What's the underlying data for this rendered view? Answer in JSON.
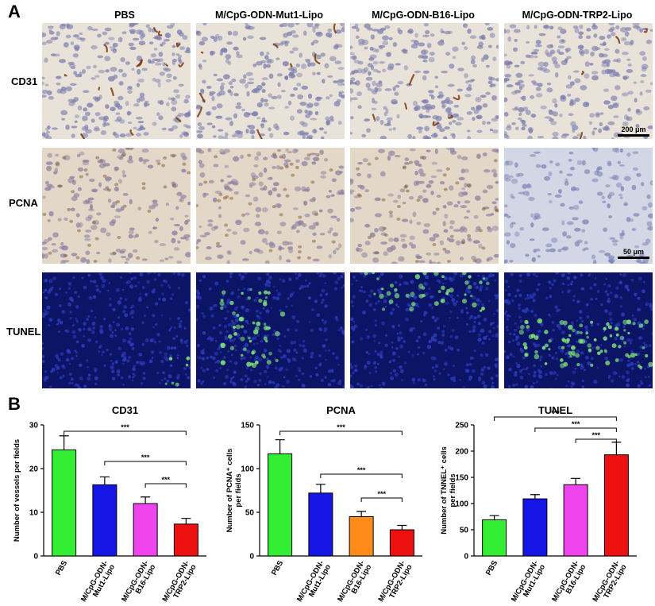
{
  "panel_a": {
    "letter": "A",
    "columns": [
      "PBS",
      "M/CpG-ODN-Mut1-Lipo",
      "M/CpG-ODN-B16-Lipo",
      "M/CpG-ODN-TRP2-Lipo"
    ],
    "rows": [
      "CD31",
      "PCNA",
      "TUNEL"
    ],
    "scalebars": [
      "200 μm",
      "50 μm"
    ]
  },
  "panel_b": {
    "letter": "B"
  },
  "colors": {
    "green": "#33ee33",
    "blue": "#1515e6",
    "magenta": "#ee44ee",
    "orange": "#ff8c1a",
    "red": "#ee1111",
    "ihc_bg": "#e9e1d6",
    "dapi": "#0c1466"
  },
  "chart_data": [
    {
      "type": "bar",
      "title": "CD31",
      "ylabel": "Number of vessels per fields",
      "ylim": [
        0,
        30
      ],
      "yticks": [
        0,
        10,
        20,
        30
      ],
      "categories": [
        "PBS",
        "M/CpG-ODN-Mut1-Lipo",
        "M/CpG-ODN-B16-Lipo",
        "M/CpG-ODN-TRP2-Lipo"
      ],
      "values": [
        24.3,
        16.3,
        12.0,
        7.3
      ],
      "errors": [
        3.2,
        1.8,
        1.5,
        1.3
      ],
      "bar_colors": [
        "#33ee33",
        "#1515e6",
        "#ee44ee",
        "#ee1111"
      ],
      "significance": [
        {
          "from": 0,
          "to": 3,
          "label": "***"
        },
        {
          "from": 1,
          "to": 3,
          "label": "***"
        },
        {
          "from": 2,
          "to": 3,
          "label": "***"
        }
      ]
    },
    {
      "type": "bar",
      "title": "PCNA",
      "ylabel": "Number of PCNA⁺ cells per fields",
      "ylim": [
        0,
        150
      ],
      "yticks": [
        0,
        50,
        100,
        150
      ],
      "categories": [
        "PBS",
        "M/CpG-ODN-Mut1-Lipo",
        "M/CpG-ODN-B16-Lipo",
        "M/CpG-ODN-TRP2-Lipo"
      ],
      "values": [
        117,
        72,
        45,
        30
      ],
      "errors": [
        16,
        10,
        6,
        5
      ],
      "bar_colors": [
        "#33ee33",
        "#1515e6",
        "#ff8c1a",
        "#ee1111"
      ],
      "significance": [
        {
          "from": 0,
          "to": 3,
          "label": "***"
        },
        {
          "from": 1,
          "to": 3,
          "label": "***"
        },
        {
          "from": 2,
          "to": 3,
          "label": "***"
        }
      ]
    },
    {
      "type": "bar",
      "title": "TUNEL",
      "ylabel": "Number of TNNEL⁺ cells per fields",
      "ylim": [
        0,
        250
      ],
      "yticks": [
        0,
        50,
        100,
        150,
        200,
        250
      ],
      "categories": [
        "PBS",
        "M/CpG-ODN-Mut1-Lipo",
        "M/CpG-ODN-B16-Lipo",
        "M/CpG-ODN-TRP2-Lipo"
      ],
      "values": [
        69,
        109,
        136,
        193
      ],
      "errors": [
        8,
        8,
        12,
        24
      ],
      "bar_colors": [
        "#33ee33",
        "#1515e6",
        "#ee44ee",
        "#ee1111"
      ],
      "significance": [
        {
          "from": 0,
          "to": 3,
          "label": "***"
        },
        {
          "from": 1,
          "to": 3,
          "label": "***"
        },
        {
          "from": 2,
          "to": 3,
          "label": "***"
        }
      ]
    }
  ]
}
